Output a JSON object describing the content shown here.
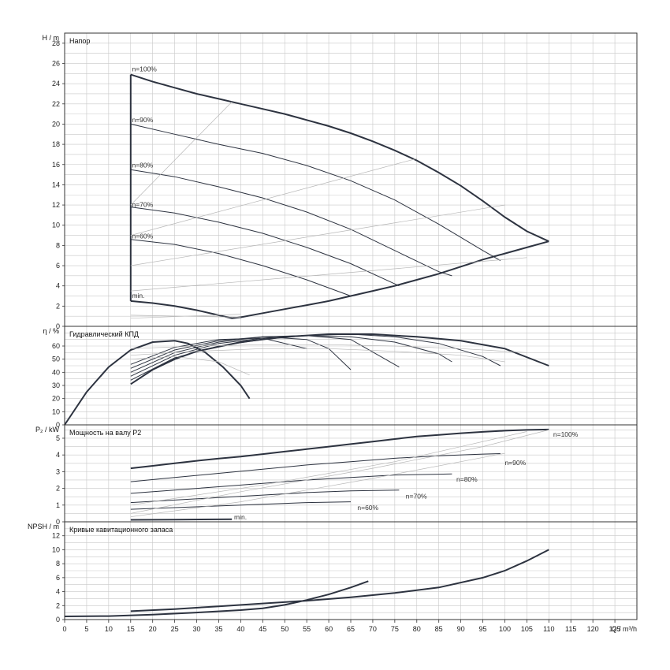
{
  "chart_data": {
    "type": "line",
    "x_axis": {
      "label": "Q / m³/h",
      "range": [
        0,
        130
      ],
      "ticks": [
        0,
        5,
        10,
        15,
        20,
        25,
        30,
        35,
        40,
        45,
        50,
        55,
        60,
        65,
        70,
        75,
        80,
        85,
        90,
        95,
        100,
        105,
        110,
        115,
        120,
        125
      ]
    },
    "panels": [
      {
        "id": "head",
        "title": "Напор",
        "ylabel": "H / m",
        "ylim": [
          0,
          29
        ],
        "yticks": [
          0,
          2,
          4,
          6,
          8,
          10,
          12,
          14,
          16,
          18,
          20,
          22,
          24,
          26,
          28
        ],
        "labels": [
          {
            "text": "n=100%",
            "x": 15.3,
            "y": 25.2
          },
          {
            "text": "n=90%",
            "x": 15.3,
            "y": 20.2
          },
          {
            "text": "n=80%",
            "x": 15.3,
            "y": 15.7
          },
          {
            "text": "n=70%",
            "x": 15.3,
            "y": 11.8
          },
          {
            "text": "n=60%",
            "x": 15.3,
            "y": 8.7
          },
          {
            "text": "min.",
            "x": 15.3,
            "y": 2.8
          }
        ],
        "series": [
          {
            "name": "n=100%",
            "style": "main",
            "x": [
              15,
              20,
              25,
              30,
              35,
              40,
              45,
              50,
              55,
              60,
              65,
              70,
              75,
              80,
              85,
              90,
              95,
              100,
              105,
              110
            ],
            "y": [
              24.9,
              24.2,
              23.6,
              23.0,
              22.5,
              22.0,
              21.5,
              21.0,
              20.4,
              19.8,
              19.1,
              18.3,
              17.4,
              16.4,
              15.2,
              13.9,
              12.4,
              10.8,
              9.4,
              8.4
            ]
          },
          {
            "name": "n=90%",
            "style": "sub",
            "x": [
              15,
              25,
              35,
              45,
              55,
              65,
              75,
              85,
              95,
              99
            ],
            "y": [
              20.0,
              19.0,
              18.0,
              17.1,
              15.9,
              14.4,
              12.5,
              10.1,
              7.5,
              6.5
            ]
          },
          {
            "name": "n=80%",
            "style": "sub",
            "x": [
              15,
              25,
              35,
              45,
              55,
              65,
              75,
              85,
              88
            ],
            "y": [
              15.5,
              14.8,
              13.8,
              12.7,
              11.3,
              9.6,
              7.5,
              5.4,
              5.0
            ]
          },
          {
            "name": "n=70%",
            "style": "sub",
            "x": [
              15,
              25,
              35,
              45,
              55,
              65,
              76
            ],
            "y": [
              11.8,
              11.2,
              10.3,
              9.2,
              7.8,
              6.2,
              4.0
            ]
          },
          {
            "name": "n=60%",
            "style": "sub",
            "x": [
              15,
              25,
              35,
              45,
              55,
              65
            ],
            "y": [
              8.6,
              8.1,
              7.2,
              6.0,
              4.6,
              3.0
            ]
          },
          {
            "name": "min.",
            "style": "main",
            "x": [
              15,
              20,
              25,
              30,
              35,
              38,
              40,
              45,
              50,
              55,
              60,
              65,
              70,
              75,
              80,
              85,
              90,
              95,
              100,
              105,
              110
            ],
            "y": [
              2.5,
              2.3,
              2.0,
              1.6,
              1.1,
              0.8,
              0.9,
              1.3,
              1.7,
              2.1,
              2.5,
              3.0,
              3.5,
              4.0,
              4.6,
              5.2,
              5.9,
              6.6,
              7.2,
              7.8,
              8.4
            ]
          },
          {
            "name": "max-speed-left",
            "style": "main",
            "x": [
              15,
              15
            ],
            "y": [
              2.5,
              24.9
            ]
          },
          {
            "name": "",
            "style": "light",
            "x": [
              15,
              38
            ],
            "y": [
              12.0,
              22.2
            ]
          },
          {
            "name": "",
            "style": "light",
            "x": [
              15,
              80
            ],
            "y": [
              9.0,
              16.6
            ]
          },
          {
            "name": "",
            "style": "light",
            "x": [
              15,
              100
            ],
            "y": [
              6.0,
              12.0
            ]
          },
          {
            "name": "",
            "style": "light",
            "x": [
              15,
              105
            ],
            "y": [
              3.5,
              6.8
            ]
          },
          {
            "name": "",
            "style": "light",
            "x": [
              15,
              40
            ],
            "y": [
              0.8,
              1.2
            ]
          },
          {
            "name": "",
            "style": "light",
            "x": [
              15,
              40
            ],
            "y": [
              1.1,
              0.9
            ]
          }
        ]
      },
      {
        "id": "efficiency",
        "title": "Гидравлический КПД",
        "ylabel": "η / %",
        "ylim": [
          0,
          75
        ],
        "yticks": [
          0,
          10,
          20,
          30,
          40,
          50,
          60
        ],
        "labels": [],
        "series": [
          {
            "name": "",
            "style": "main",
            "x": [
              0,
              5,
              10,
              15,
              20,
              25,
              28,
              32,
              36,
              40,
              42
            ],
            "y": [
              0,
              25,
              44,
              57,
              63,
              64,
              62,
              55,
              44,
              30,
              20
            ]
          },
          {
            "name": "n=100%",
            "style": "main",
            "x": [
              15,
              20,
              25,
              30,
              40,
              50,
              60,
              70,
              80,
              90,
              100,
              110
            ],
            "y": [
              31,
              42,
              50,
              56,
              63,
              67,
              69,
              69,
              67,
              64,
              58,
              45
            ]
          },
          {
            "name": "n=90%",
            "style": "sub",
            "x": [
              15,
              25,
              35,
              45,
              55,
              65,
              75,
              85,
              95,
              99
            ],
            "y": [
              34,
              51,
              60,
              65,
              68,
              69,
              67,
              62,
              52,
              45
            ]
          },
          {
            "name": "n=80%",
            "style": "sub",
            "x": [
              15,
              25,
              35,
              45,
              55,
              65,
              75,
              85,
              88
            ],
            "y": [
              37,
              53,
              62,
              66,
              68,
              67,
              63,
              54,
              48
            ]
          },
          {
            "name": "n=70%",
            "style": "sub",
            "x": [
              15,
              25,
              35,
              45,
              55,
              65,
              76
            ],
            "y": [
              40,
              55,
              63,
              67,
              68,
              65,
              44
            ]
          },
          {
            "name": "n=60%",
            "style": "sub",
            "x": [
              15,
              25,
              35,
              45,
              55,
              60,
              65
            ],
            "y": [
              43,
              57,
              64,
              67,
              65,
              58,
              42
            ]
          },
          {
            "name": "",
            "style": "sub",
            "x": [
              15,
              25,
              35,
              45,
              55
            ],
            "y": [
              46,
              59,
              65,
              66,
              58
            ]
          },
          {
            "name": "",
            "style": "light",
            "x": [
              15,
              30,
              45,
              60,
              75,
              90,
              105
            ],
            "y": [
              58,
              60,
              61,
              61,
              60,
              58,
              55
            ]
          },
          {
            "name": "",
            "style": "light",
            "x": [
              15,
              30,
              45,
              60,
              75,
              90,
              100
            ],
            "y": [
              53,
              56,
              58,
              58,
              56,
              53,
              48
            ]
          },
          {
            "name": "",
            "style": "light",
            "x": [
              15,
              25,
              35,
              42
            ],
            "y": [
              50,
              52,
              48,
              38
            ]
          }
        ]
      },
      {
        "id": "power",
        "title": "Мощность на валу P2",
        "ylabel": "P₂ / kW",
        "ylim": [
          0,
          5.8
        ],
        "yticks": [
          0,
          1,
          2,
          3,
          4,
          5
        ],
        "labels": [
          {
            "text": "n=100%",
            "x": 111,
            "y": 5.1
          },
          {
            "text": "n=90%",
            "x": 100,
            "y": 3.4
          },
          {
            "text": "n=80%",
            "x": 89,
            "y": 2.4
          },
          {
            "text": "n=70%",
            "x": 77.5,
            "y": 1.4
          },
          {
            "text": "n=60%",
            "x": 66.5,
            "y": 0.7
          },
          {
            "text": "min.",
            "x": 38.5,
            "y": 0.15
          }
        ],
        "series": [
          {
            "name": "n=100%",
            "style": "main",
            "x": [
              15,
              20,
              25,
              30,
              35,
              40,
              45,
              50,
              55,
              60,
              65,
              70,
              75,
              80,
              85,
              90,
              95,
              100,
              105,
              110
            ],
            "y": [
              3.2,
              3.35,
              3.5,
              3.65,
              3.78,
              3.9,
              4.05,
              4.2,
              4.35,
              4.5,
              4.65,
              4.8,
              4.95,
              5.1,
              5.2,
              5.3,
              5.38,
              5.45,
              5.5,
              5.52
            ]
          },
          {
            "name": "n=90%",
            "style": "sub",
            "x": [
              15,
              25,
              35,
              45,
              55,
              65,
              75,
              85,
              95,
              99
            ],
            "y": [
              2.4,
              2.65,
              2.9,
              3.15,
              3.4,
              3.6,
              3.8,
              3.95,
              4.05,
              4.08
            ]
          },
          {
            "name": "n=80%",
            "style": "sub",
            "x": [
              15,
              25,
              35,
              45,
              55,
              65,
              75,
              85,
              88
            ],
            "y": [
              1.7,
              1.9,
              2.1,
              2.3,
              2.5,
              2.65,
              2.8,
              2.85,
              2.86
            ]
          },
          {
            "name": "n=70%",
            "style": "sub",
            "x": [
              15,
              25,
              35,
              45,
              55,
              65,
              76
            ],
            "y": [
              1.15,
              1.3,
              1.45,
              1.6,
              1.75,
              1.85,
              1.9
            ]
          },
          {
            "name": "n=60%",
            "style": "sub",
            "x": [
              15,
              25,
              35,
              45,
              55,
              65
            ],
            "y": [
              0.75,
              0.85,
              0.95,
              1.05,
              1.15,
              1.2
            ]
          },
          {
            "name": "min.",
            "style": "main",
            "x": [
              15,
              25,
              38
            ],
            "y": [
              0.12,
              0.13,
              0.15
            ]
          },
          {
            "name": "",
            "style": "light",
            "x": [
              15,
              40,
              70,
              95,
              110
            ],
            "y": [
              0.5,
              1.8,
              3.2,
              4.5,
              5.5
            ]
          },
          {
            "name": "",
            "style": "light",
            "x": [
              15,
              40,
              70,
              100
            ],
            "y": [
              0.3,
              1.2,
              2.6,
              4.1
            ]
          },
          {
            "name": "",
            "style": "light",
            "x": [
              15,
              45,
              75,
              105
            ],
            "y": [
              1.0,
              2.2,
              3.6,
              5.4
            ]
          }
        ]
      },
      {
        "id": "npsh",
        "title": "Кривые кавитационного запаса",
        "ylabel": "NPSH / m",
        "ylim": [
          0,
          14
        ],
        "yticks": [
          0,
          2,
          4,
          6,
          8,
          10,
          12
        ],
        "labels": [],
        "series": [
          {
            "name": "",
            "style": "main",
            "x": [
              0,
              10,
              20,
              30,
              40,
              45,
              50,
              55,
              60,
              65,
              69
            ],
            "y": [
              0.45,
              0.5,
              0.7,
              1.0,
              1.35,
              1.6,
              2.1,
              2.8,
              3.6,
              4.6,
              5.5
            ]
          },
          {
            "name": "",
            "style": "main",
            "x": [
              15,
              25,
              35,
              45,
              55,
              65,
              75,
              85,
              95,
              100,
              105,
              110
            ],
            "y": [
              1.2,
              1.5,
              1.9,
              2.3,
              2.7,
              3.2,
              3.8,
              4.6,
              6.0,
              7.0,
              8.4,
              10.0
            ]
          }
        ]
      }
    ]
  }
}
